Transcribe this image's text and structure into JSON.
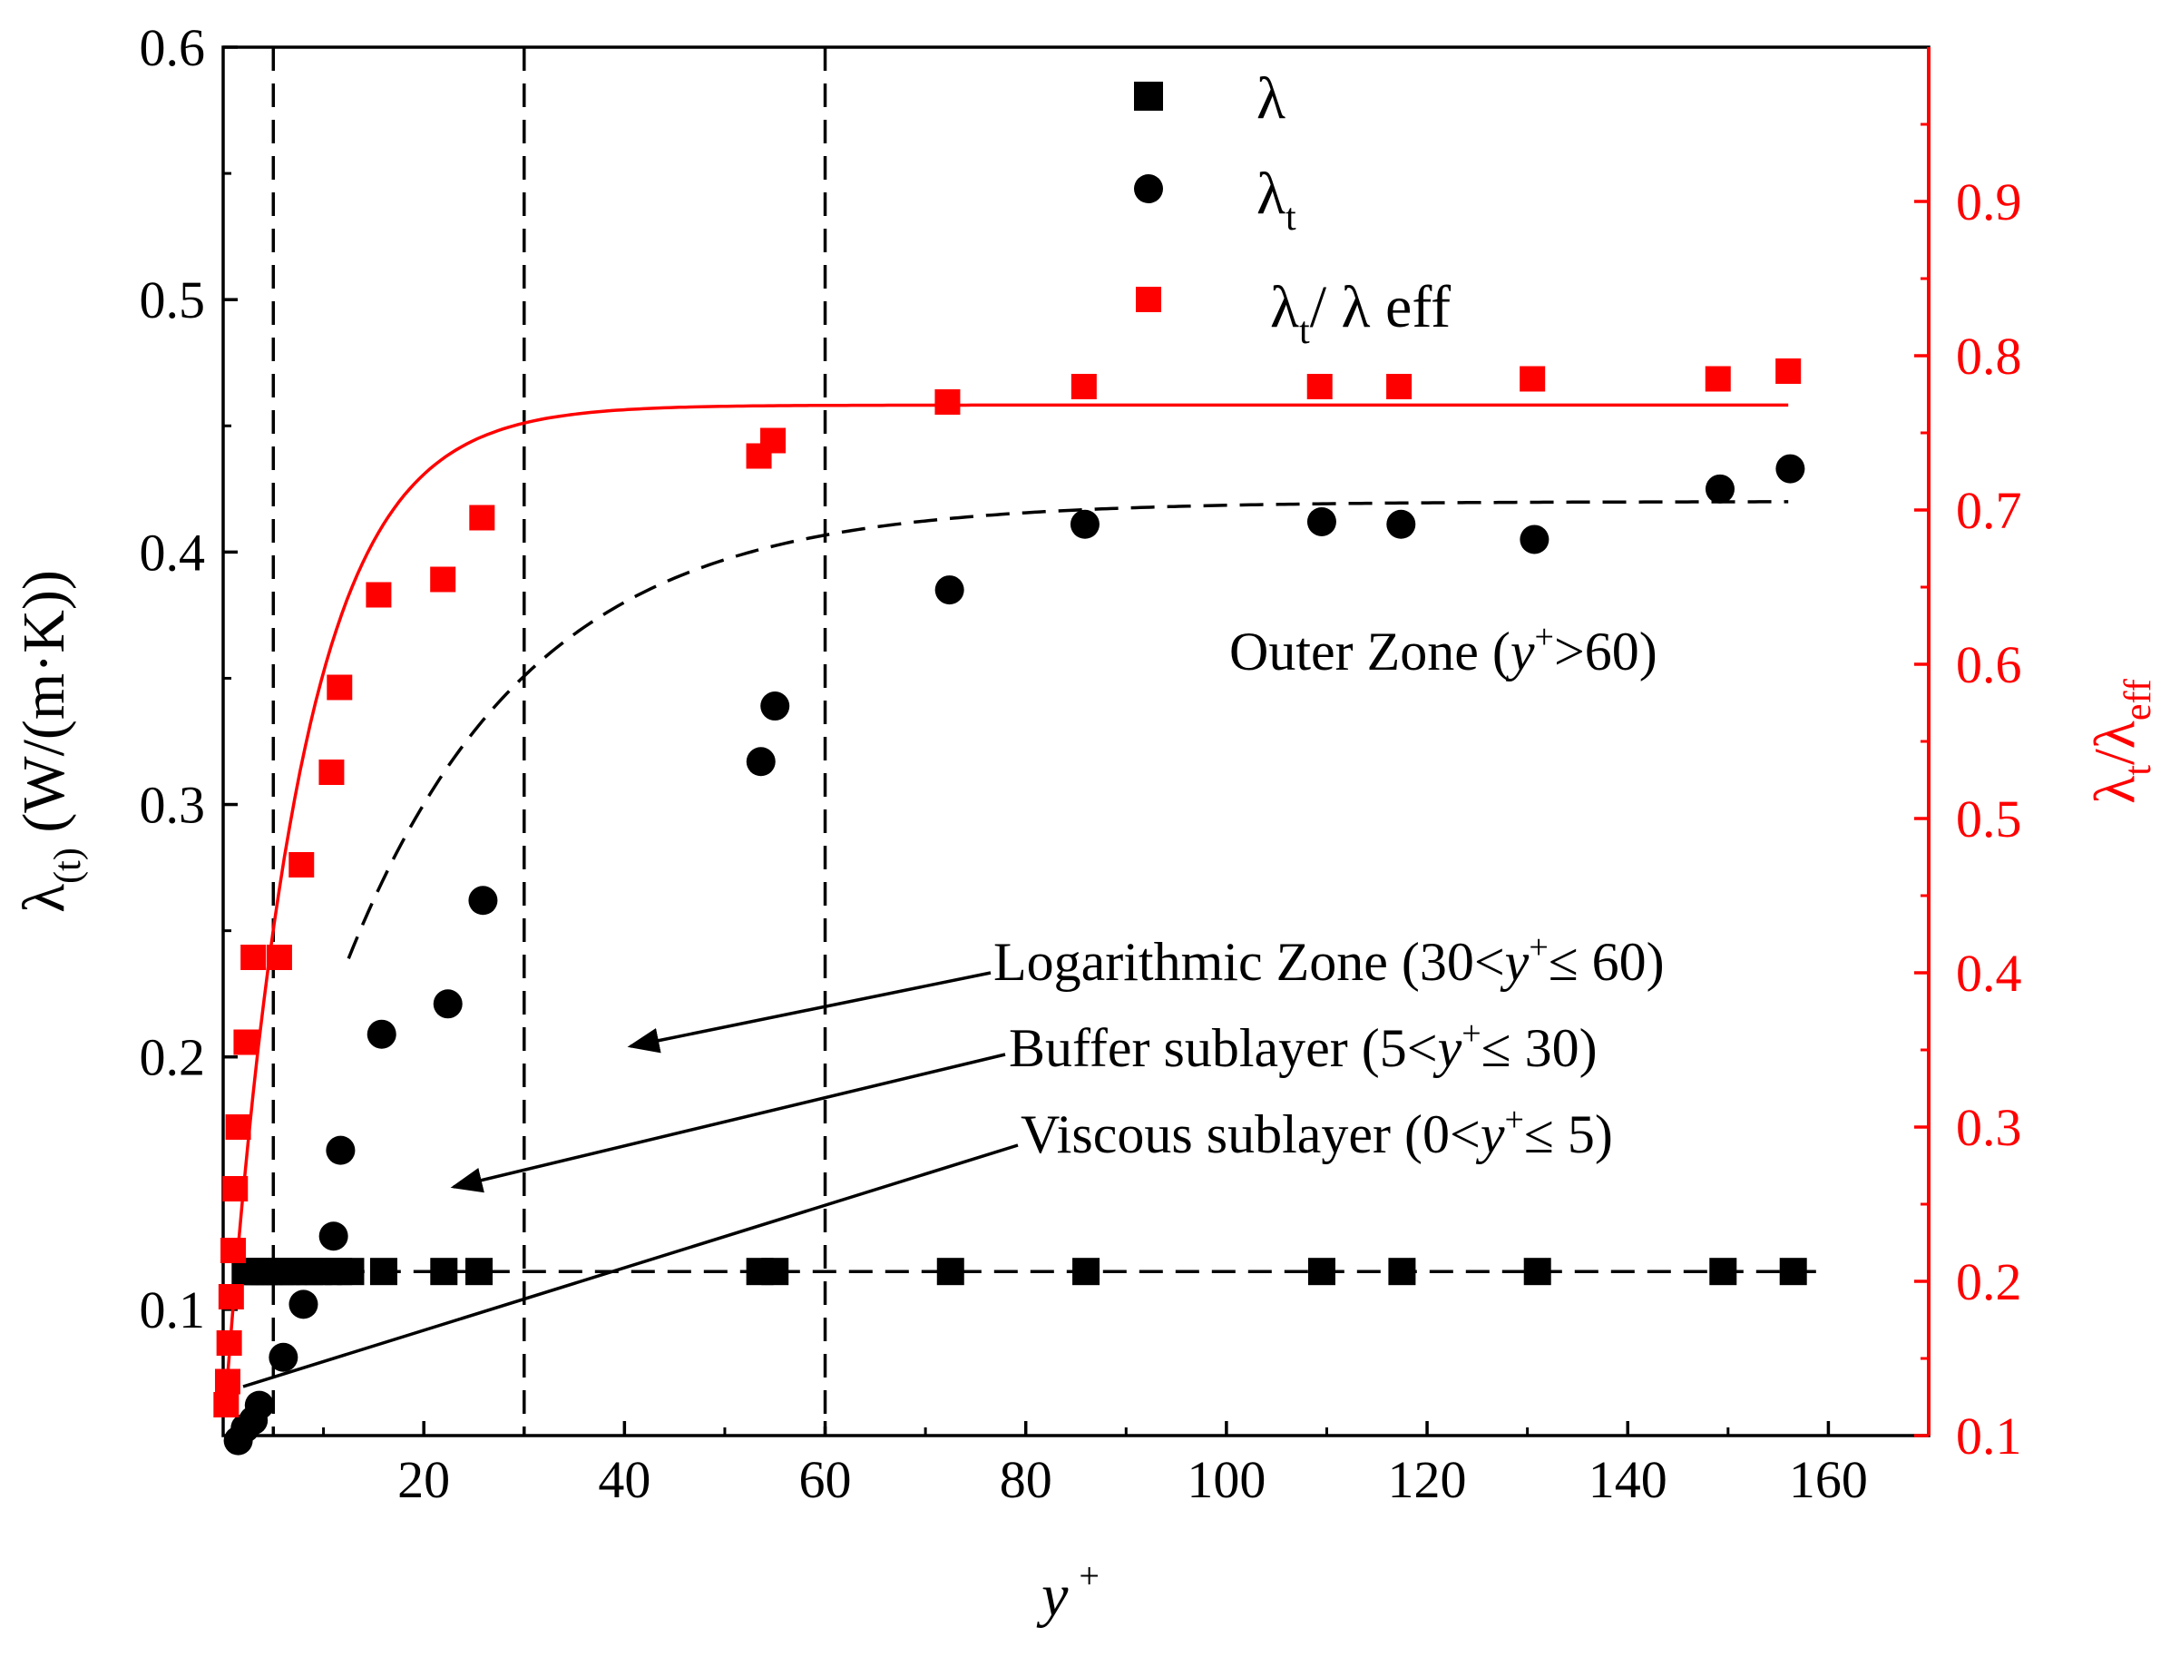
{
  "chart_data": {
    "type": "scatter",
    "title": "",
    "xlabel": {
      "base": "y",
      "sup": "+"
    },
    "ylabel_left": {
      "base": "λ",
      "sub": "(t)",
      "rest": " (W/(m·K))"
    },
    "ylabel_right": {
      "base": "λ",
      "sub1": "t",
      "slash": "/",
      "base2": "λ",
      "sub2": "eff"
    },
    "xlim": [
      0,
      170
    ],
    "ylim_left": [
      0.05,
      0.6
    ],
    "ylim_right": [
      0.1,
      1.0
    ],
    "x_ticks": [
      20,
      40,
      60,
      80,
      100,
      120,
      140,
      160
    ],
    "x_tick_labels": [
      "20",
      "40",
      "60",
      "80",
      "100",
      "120",
      "140",
      "160"
    ],
    "y_left_ticks": [
      0.1,
      0.2,
      0.3,
      0.4,
      0.5,
      0.6
    ],
    "y_left_tick_labels": [
      "0.1",
      "0.2",
      "0.3",
      "0.4",
      "0.5",
      "0.6"
    ],
    "y_right_ticks": [
      0.1,
      0.2,
      0.3,
      0.4,
      0.5,
      0.6,
      0.7,
      0.8,
      0.9
    ],
    "y_right_tick_labels": [
      "0.1",
      "0.2",
      "0.3",
      "0.4",
      "0.5",
      "0.6",
      "0.7",
      "0.8",
      "0.9"
    ],
    "zone_boundaries": [
      5,
      30,
      60
    ],
    "colors": {
      "black": "#000000",
      "red": "#ff0000"
    },
    "legend": [
      {
        "marker": "square",
        "color": "#000000",
        "base": "λ",
        "sub": "",
        "tail": ""
      },
      {
        "marker": "circle",
        "color": "#000000",
        "base": "λ",
        "sub": "t",
        "tail": ""
      },
      {
        "marker": "square",
        "color": "#ff0000",
        "base": "λ",
        "sub": "t",
        "tail": "/ λ eff"
      }
    ],
    "series": [
      {
        "name": "λ",
        "axis": "left",
        "marker": "square",
        "color": "#000000",
        "x": [
          2.2,
          2.7,
          3.2,
          3.6,
          4.1,
          4.6,
          5.1,
          5.7,
          6.3,
          7.0,
          7.8,
          8.6,
          9.5,
          10.5,
          11.5,
          12.7,
          16.0,
          22.0,
          25.5,
          53.5,
          55.0,
          72.5,
          86.0,
          109.5,
          117.5,
          131.0,
          149.5,
          156.5
        ],
        "y": [
          0.115,
          0.115,
          0.115,
          0.115,
          0.115,
          0.115,
          0.115,
          0.115,
          0.115,
          0.115,
          0.115,
          0.115,
          0.115,
          0.115,
          0.115,
          0.115,
          0.115,
          0.115,
          0.115,
          0.115,
          0.115,
          0.115,
          0.115,
          0.115,
          0.115,
          0.115,
          0.115,
          0.115
        ]
      },
      {
        "name": "λt",
        "axis": "left",
        "marker": "circle",
        "color": "#000000",
        "x": [
          1.5,
          2.2,
          3.0,
          3.6,
          6.0,
          8.0,
          11.0,
          11.7,
          15.8,
          22.4,
          25.9,
          53.6,
          55.0,
          72.4,
          85.9,
          109.5,
          117.4,
          130.7,
          149.2,
          156.2
        ],
        "y": [
          0.048,
          0.053,
          0.056,
          0.062,
          0.081,
          0.102,
          0.129,
          0.163,
          0.209,
          0.221,
          0.262,
          0.317,
          0.339,
          0.385,
          0.411,
          0.412,
          0.411,
          0.405,
          0.425,
          0.433
        ]
      },
      {
        "name": "λt/λeff",
        "axis": "right",
        "marker": "square",
        "color": "#ff0000",
        "x": [
          0.3,
          0.45,
          0.6,
          0.8,
          1.0,
          1.2,
          1.5,
          2.3,
          3.0,
          5.6,
          7.8,
          10.8,
          11.6,
          15.5,
          21.9,
          25.8,
          53.4,
          54.8,
          72.2,
          85.8,
          109.3,
          117.2,
          130.5,
          149.0,
          156.0
        ],
        "y": [
          0.12,
          0.135,
          0.16,
          0.19,
          0.22,
          0.26,
          0.3,
          0.355,
          0.41,
          0.41,
          0.47,
          0.53,
          0.585,
          0.645,
          0.655,
          0.695,
          0.735,
          0.745,
          0.77,
          0.78,
          0.78,
          0.78,
          0.785,
          0.785,
          0.79
        ]
      }
    ],
    "fits": [
      {
        "name": "λ fit",
        "axis": "left",
        "style": "dashed",
        "color": "#000000",
        "model": "constant",
        "value": 0.115,
        "x_range": [
          4.5,
          160
        ]
      },
      {
        "name": "λt fit",
        "axis": "left",
        "style": "dashed",
        "color": "#000000",
        "model": "saturating",
        "a": 0.42,
        "c": 0.06,
        "k": 0.055,
        "x_range": [
          12.5,
          156
        ]
      },
      {
        "name": "λt/λeff fit",
        "axis": "right",
        "style": "solid",
        "color": "#ff0000",
        "model": "saturating",
        "a": 0.768,
        "c": 0.1,
        "k": 0.135,
        "x_range": [
          0.4,
          156
        ]
      }
    ],
    "annotations": [
      {
        "id": "outer",
        "prefix": "Outer Zone (",
        "var": "y",
        "sup": "+",
        "suffix": ">60)"
      },
      {
        "id": "log",
        "prefix": "Logarithmic Zone (30<",
        "var": "y",
        "sup": "+",
        "suffix": "≤ 60)"
      },
      {
        "id": "buffer",
        "prefix": "Buffer sublayer (5<",
        "var": "y",
        "sup": "+",
        "suffix": "≤ 30)"
      },
      {
        "id": "viscous",
        "prefix": "Viscous sublayer (0<",
        "var": "y",
        "sup": "+",
        "suffix": "≤ 5)"
      }
    ]
  }
}
